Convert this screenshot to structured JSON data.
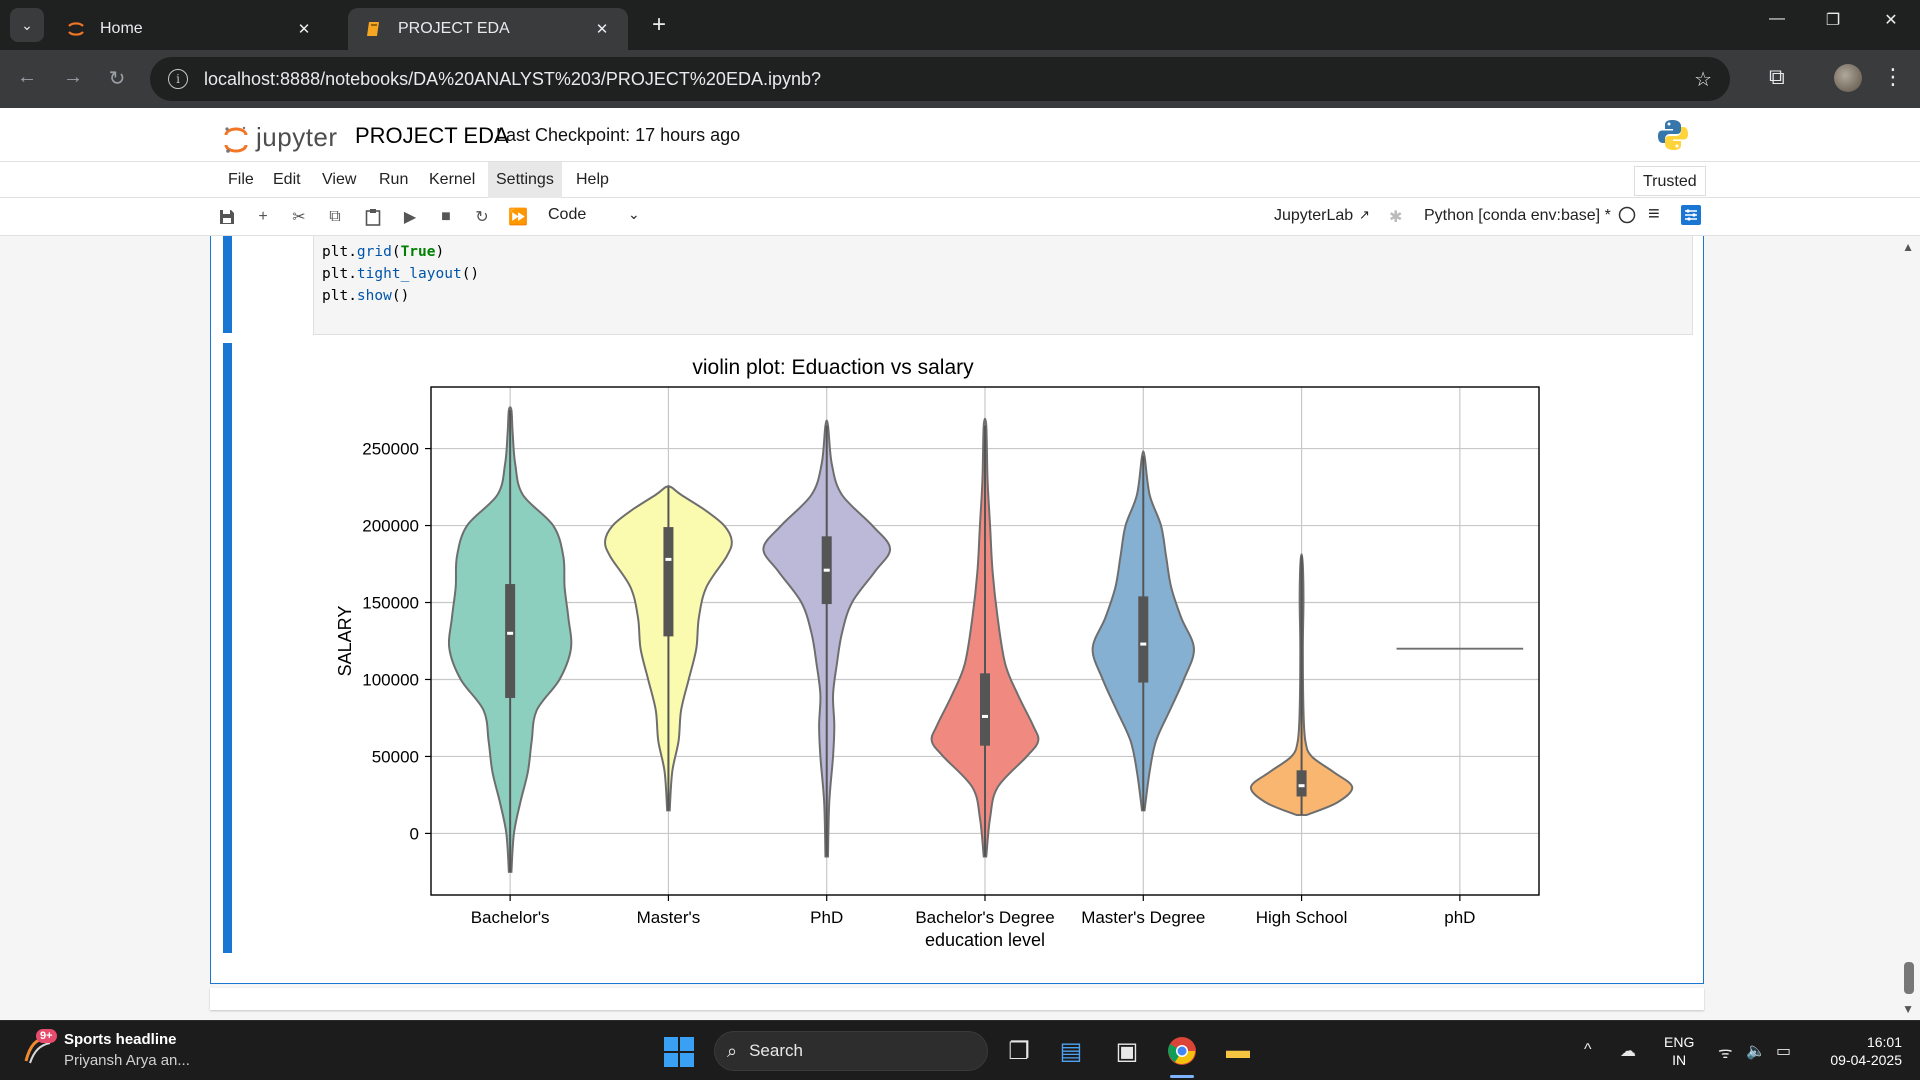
{
  "browser": {
    "tabs": [
      {
        "title": "Home",
        "active": false
      },
      {
        "title": "PROJECT EDA",
        "active": true
      }
    ],
    "url": "localhost:8888/notebooks/DA%20ANALYST%203/PROJECT%20EDA.ipynb?"
  },
  "jupyter": {
    "logo_text": "jupyter",
    "notebook_title": "PROJECT EDA",
    "checkpoint": "Last Checkpoint: 17 hours ago",
    "menu": [
      "File",
      "Edit",
      "View",
      "Run",
      "Kernel",
      "Settings",
      "Help"
    ],
    "trusted": "Trusted",
    "cell_type": "Code",
    "jupyterlab_link": "JupyterLab",
    "kernel": "Python [conda env:base] *"
  },
  "code_lines": [
    {
      "obj": "plt.",
      "fn": "grid",
      "open": "(",
      "arg": "True",
      "close": ")"
    },
    {
      "obj": "plt.",
      "fn": "tight_layout",
      "open": "()",
      "arg": "",
      "close": ""
    },
    {
      "obj": "plt.",
      "fn": "show",
      "open": "()",
      "arg": "",
      "close": ""
    }
  ],
  "chart_data": {
    "type": "violin",
    "title": "violin plot: Eduaction vs salary",
    "xlabel": "education level",
    "ylabel": "SALARY",
    "ylim": [
      -40000,
      290000
    ],
    "yticks": [
      0,
      50000,
      100000,
      150000,
      200000,
      250000
    ],
    "ytick_labels": [
      "0",
      "50000",
      "100000",
      "150000",
      "200000",
      "250000"
    ],
    "grid": true,
    "categories": [
      "Bachelor's",
      "Master's",
      "PhD",
      "Bachelor's Degree",
      "Master's Degree",
      "High School",
      "phD"
    ],
    "colors": [
      "#8ccfbf",
      "#fbfbb0",
      "#bcb8d8",
      "#f08a80",
      "#86b0d2",
      "#f8b670",
      "#b3d98a"
    ],
    "violins": [
      {
        "min": -25000,
        "max": 275000,
        "q1": 88000,
        "median": 130000,
        "q3": 162000,
        "profile": [
          [
            -25000,
            0.01
          ],
          [
            0,
            0.03
          ],
          [
            20000,
            0.08
          ],
          [
            40000,
            0.14
          ],
          [
            60000,
            0.17
          ],
          [
            80000,
            0.21
          ],
          [
            100000,
            0.39
          ],
          [
            120000,
            0.48
          ],
          [
            140000,
            0.46
          ],
          [
            160000,
            0.43
          ],
          [
            180000,
            0.42
          ],
          [
            200000,
            0.34
          ],
          [
            220000,
            0.1
          ],
          [
            240000,
            0.04
          ],
          [
            260000,
            0.02
          ],
          [
            275000,
            0.01
          ]
        ]
      },
      {
        "min": 15000,
        "max": 225000,
        "q1": 128000,
        "median": 178000,
        "q3": 199000,
        "profile": [
          [
            15000,
            0.01
          ],
          [
            40000,
            0.03
          ],
          [
            60000,
            0.08
          ],
          [
            80000,
            0.1
          ],
          [
            100000,
            0.16
          ],
          [
            120000,
            0.22
          ],
          [
            140000,
            0.24
          ],
          [
            160000,
            0.3
          ],
          [
            180000,
            0.46
          ],
          [
            190000,
            0.5
          ],
          [
            200000,
            0.44
          ],
          [
            210000,
            0.29
          ],
          [
            220000,
            0.1
          ],
          [
            225000,
            0.02
          ]
        ]
      },
      {
        "min": -15000,
        "max": 265000,
        "q1": 149000,
        "median": 171000,
        "q3": 193000,
        "profile": [
          [
            -15000,
            0.01
          ],
          [
            20000,
            0.02
          ],
          [
            50000,
            0.05
          ],
          [
            70000,
            0.06
          ],
          [
            90000,
            0.05
          ],
          [
            110000,
            0.08
          ],
          [
            130000,
            0.12
          ],
          [
            150000,
            0.2
          ],
          [
            170000,
            0.38
          ],
          [
            185000,
            0.5
          ],
          [
            200000,
            0.36
          ],
          [
            220000,
            0.12
          ],
          [
            240000,
            0.04
          ],
          [
            265000,
            0.01
          ]
        ]
      },
      {
        "min": -15000,
        "max": 265000,
        "q1": 57000,
        "median": 76000,
        "q3": 104000,
        "profile": [
          [
            -15000,
            0.01
          ],
          [
            10000,
            0.04
          ],
          [
            30000,
            0.1
          ],
          [
            50000,
            0.33
          ],
          [
            60000,
            0.42
          ],
          [
            70000,
            0.38
          ],
          [
            90000,
            0.26
          ],
          [
            110000,
            0.16
          ],
          [
            140000,
            0.1
          ],
          [
            170000,
            0.06
          ],
          [
            200000,
            0.04
          ],
          [
            230000,
            0.02
          ],
          [
            265000,
            0.01
          ]
        ]
      },
      {
        "min": 15000,
        "max": 245000,
        "q1": 98000,
        "median": 123000,
        "q3": 154000,
        "profile": [
          [
            15000,
            0.01
          ],
          [
            40000,
            0.05
          ],
          [
            60000,
            0.1
          ],
          [
            80000,
            0.21
          ],
          [
            100000,
            0.32
          ],
          [
            120000,
            0.4
          ],
          [
            140000,
            0.3
          ],
          [
            160000,
            0.22
          ],
          [
            180000,
            0.18
          ],
          [
            200000,
            0.14
          ],
          [
            220000,
            0.05
          ],
          [
            245000,
            0.01
          ]
        ]
      },
      {
        "min": 12000,
        "max": 180000,
        "q1": 24000,
        "median": 31000,
        "q3": 41000,
        "profile": [
          [
            12000,
            0.04
          ],
          [
            20000,
            0.28
          ],
          [
            30000,
            0.4
          ],
          [
            40000,
            0.25
          ],
          [
            50000,
            0.08
          ],
          [
            60000,
            0.03
          ],
          [
            80000,
            0.015
          ],
          [
            120000,
            0.01
          ],
          [
            150000,
            0.015
          ],
          [
            170000,
            0.012
          ],
          [
            180000,
            0.004
          ]
        ]
      },
      {
        "constant": 120000
      }
    ]
  }
}
